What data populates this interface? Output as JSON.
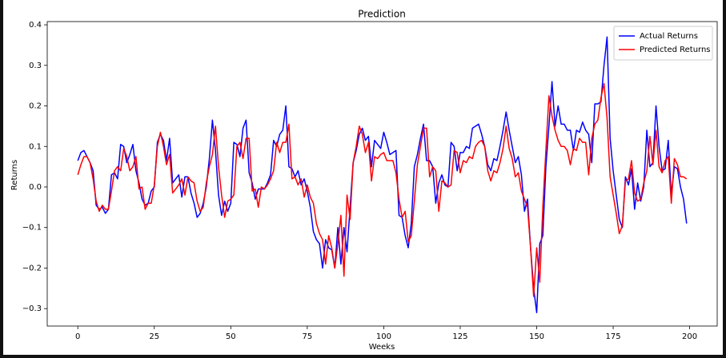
{
  "chart_data": {
    "type": "line",
    "title": "Prediction",
    "x_label": "Weeks",
    "y_label": "Returns",
    "x": [
      0,
      1,
      2,
      3,
      4,
      5,
      6,
      7,
      8,
      9,
      10,
      11,
      12,
      13,
      14,
      15,
      16,
      17,
      18,
      19,
      20,
      21,
      22,
      23,
      24,
      25,
      26,
      27,
      28,
      29,
      30,
      31,
      32,
      33,
      34,
      35,
      36,
      37,
      38,
      39,
      40,
      41,
      42,
      43,
      44,
      45,
      46,
      47,
      48,
      49,
      50,
      51,
      52,
      53,
      54,
      55,
      56,
      57,
      58,
      59,
      60,
      61,
      62,
      63,
      64,
      65,
      66,
      67,
      68,
      69,
      70,
      71,
      72,
      73,
      74,
      75,
      76,
      77,
      78,
      79,
      80,
      81,
      82,
      83,
      84,
      85,
      86,
      87,
      88,
      89,
      90,
      91,
      92,
      93,
      94,
      95,
      96,
      97,
      98,
      99,
      100,
      101,
      102,
      103,
      104,
      105,
      106,
      107,
      108,
      109,
      110,
      111,
      112,
      113,
      114,
      115,
      116,
      117,
      118,
      119,
      120,
      121,
      122,
      123,
      124,
      125,
      126,
      127,
      128,
      129,
      130,
      131,
      132,
      133,
      134,
      135,
      136,
      137,
      138,
      139,
      140,
      141,
      142,
      143,
      144,
      145,
      146,
      147,
      148,
      149,
      150,
      151,
      152,
      153,
      154,
      155,
      156,
      157,
      158,
      159,
      160,
      161,
      162,
      163,
      164,
      165,
      166,
      167,
      168,
      169,
      170,
      171,
      172,
      173,
      174,
      175,
      176,
      177,
      178,
      179,
      180,
      181,
      182,
      183,
      184,
      185,
      186,
      187,
      188,
      189,
      190,
      191,
      192,
      193,
      194,
      195,
      196,
      197,
      198,
      199
    ],
    "series": [
      {
        "name": "Actual Returns",
        "color": "#0000ff",
        "values": [
          0.065,
          0.085,
          0.09,
          0.075,
          0.06,
          0.04,
          -0.045,
          -0.055,
          -0.05,
          -0.065,
          -0.055,
          0.03,
          0.035,
          0.02,
          0.105,
          0.1,
          0.06,
          0.08,
          0.105,
          0.04,
          0.01,
          -0.03,
          -0.045,
          -0.04,
          -0.01,
          0.0,
          0.11,
          0.13,
          0.115,
          0.065,
          0.12,
          0.01,
          0.02,
          0.03,
          -0.025,
          0.025,
          0.025,
          -0.015,
          -0.04,
          -0.075,
          -0.065,
          -0.04,
          0.0,
          0.07,
          0.165,
          0.09,
          -0.02,
          -0.07,
          -0.035,
          -0.06,
          -0.04,
          0.11,
          0.105,
          0.075,
          0.145,
          0.165,
          0.035,
          0.01,
          -0.03,
          -0.005,
          -0.005,
          -0.005,
          0.01,
          0.03,
          0.115,
          0.1,
          0.13,
          0.14,
          0.2,
          0.05,
          0.045,
          0.025,
          0.04,
          0.005,
          0.02,
          -0.01,
          -0.05,
          -0.11,
          -0.13,
          -0.14,
          -0.2,
          -0.13,
          -0.15,
          -0.155,
          -0.2,
          -0.1,
          -0.19,
          -0.1,
          -0.16,
          -0.05,
          0.06,
          0.09,
          0.13,
          0.145,
          0.115,
          0.125,
          0.05,
          0.115,
          0.105,
          0.095,
          0.135,
          0.11,
          0.08,
          0.085,
          0.09,
          -0.07,
          -0.075,
          -0.12,
          -0.15,
          -0.09,
          0.05,
          0.08,
          0.12,
          0.155,
          0.065,
          0.065,
          0.05,
          -0.04,
          0.01,
          0.03,
          0.005,
          0.0,
          0.11,
          0.1,
          0.04,
          0.085,
          0.085,
          0.1,
          0.095,
          0.145,
          0.15,
          0.155,
          0.13,
          0.1,
          0.055,
          0.04,
          0.07,
          0.065,
          0.1,
          0.14,
          0.185,
          0.14,
          0.1,
          0.06,
          0.075,
          0.03,
          -0.06,
          -0.03,
          -0.15,
          -0.25,
          -0.31,
          -0.14,
          -0.12,
          0.05,
          0.15,
          0.26,
          0.15,
          0.2,
          0.155,
          0.155,
          0.14,
          0.14,
          0.09,
          0.14,
          0.135,
          0.16,
          0.14,
          0.13,
          0.06,
          0.205,
          0.205,
          0.21,
          0.3,
          0.37,
          0.12,
          0.04,
          -0.02,
          -0.08,
          -0.1,
          0.025,
          0.005,
          0.045,
          -0.055,
          0.01,
          -0.035,
          0.0,
          0.14,
          0.05,
          0.06,
          0.2,
          0.1,
          0.04,
          0.045,
          0.115,
          -0.02,
          0.05,
          0.045,
          0.0,
          -0.03,
          -0.09
        ]
      },
      {
        "name": "Predicted Returns",
        "color": "#ff0000",
        "values": [
          0.03,
          0.055,
          0.075,
          0.075,
          0.06,
          0.02,
          -0.035,
          -0.06,
          -0.045,
          -0.055,
          -0.055,
          -0.01,
          0.04,
          0.05,
          0.04,
          0.095,
          0.075,
          0.04,
          0.05,
          0.075,
          -0.005,
          0.0,
          -0.055,
          -0.04,
          -0.04,
          0.005,
          0.1,
          0.135,
          0.1,
          0.055,
          0.08,
          -0.015,
          -0.005,
          0.005,
          0.02,
          -0.02,
          0.025,
          0.015,
          0.01,
          -0.035,
          -0.06,
          -0.05,
          0.01,
          0.05,
          0.08,
          0.15,
          0.05,
          -0.02,
          -0.075,
          -0.035,
          -0.03,
          -0.02,
          0.1,
          0.11,
          0.07,
          0.12,
          0.12,
          -0.01,
          -0.005,
          -0.05,
          0.0,
          -0.005,
          0.005,
          0.02,
          0.04,
          0.11,
          0.085,
          0.11,
          0.11,
          0.155,
          0.02,
          0.025,
          0.005,
          0.02,
          -0.025,
          0.005,
          -0.025,
          -0.04,
          -0.09,
          -0.115,
          -0.13,
          -0.19,
          -0.12,
          -0.15,
          -0.2,
          -0.14,
          -0.07,
          -0.22,
          -0.02,
          -0.08,
          0.06,
          0.1,
          0.15,
          0.13,
          0.085,
          0.11,
          0.015,
          0.075,
          0.07,
          0.08,
          0.085,
          0.065,
          0.065,
          0.065,
          0.035,
          -0.03,
          -0.075,
          -0.06,
          -0.135,
          -0.12,
          -0.035,
          0.055,
          0.1,
          0.145,
          0.145,
          0.025,
          0.05,
          0.04,
          -0.06,
          0.015,
          0.01,
          0.0,
          0.005,
          0.09,
          0.085,
          0.035,
          0.065,
          0.06,
          0.075,
          0.07,
          0.1,
          0.11,
          0.115,
          0.1,
          0.04,
          0.015,
          0.04,
          0.035,
          0.06,
          0.095,
          0.15,
          0.095,
          0.07,
          0.025,
          0.035,
          -0.01,
          -0.03,
          -0.05,
          -0.15,
          -0.27,
          -0.15,
          -0.235,
          -0.05,
          0.09,
          0.225,
          0.175,
          0.14,
          0.115,
          0.1,
          0.1,
          0.09,
          0.055,
          0.095,
          0.09,
          0.12,
          0.11,
          0.11,
          0.03,
          0.12,
          0.155,
          0.165,
          0.22,
          0.255,
          0.17,
          0.025,
          -0.02,
          -0.065,
          -0.115,
          -0.095,
          0.015,
          0.02,
          0.065,
          -0.015,
          -0.035,
          -0.03,
          0.01,
          0.04,
          0.125,
          0.055,
          0.14,
          0.05,
          0.035,
          0.065,
          0.075,
          -0.04,
          0.07,
          0.055,
          0.025,
          0.025,
          0.02
        ]
      }
    ],
    "xlim": [
      -10,
      209
    ],
    "xticks": [
      0,
      25,
      50,
      75,
      100,
      125,
      150,
      175,
      200
    ],
    "ylim": [
      -0.343,
      0.408
    ],
    "yticks": [
      {
        "value": -0.3,
        "label": "−0.3"
      },
      {
        "value": -0.2,
        "label": "−0.2"
      },
      {
        "value": -0.1,
        "label": "−0.1"
      },
      {
        "value": 0,
        "label": "0.0"
      },
      0.1,
      0.2,
      0.3,
      0.4
    ],
    "legend": "upper right",
    "grid": false
  }
}
